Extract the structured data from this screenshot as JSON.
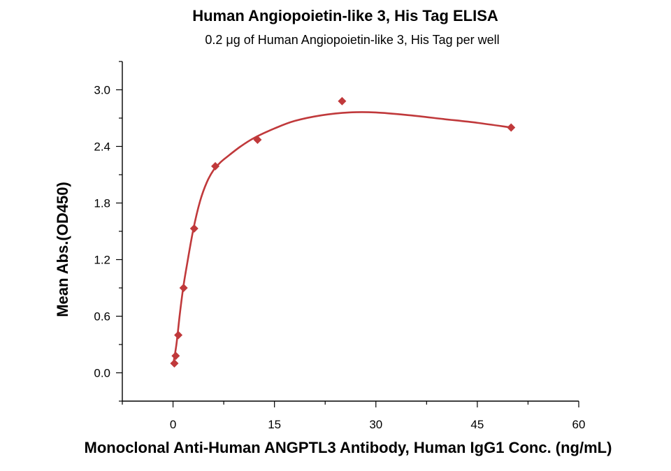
{
  "chart_data": {
    "type": "scatter",
    "title": "Human Angiopoietin-like 3, His Tag ELISA",
    "subtitle": "0.2 μg of Human Angiopoietin-like 3, His Tag per well",
    "xlabel": "Monoclonal Anti-Human ANGPTL3 Antibody, Human IgG1 Conc. (ng/mL)",
    "ylabel": "Mean Abs.(OD450)",
    "xlim": [
      -7.5,
      60
    ],
    "ylim": [
      -0.3,
      3.3
    ],
    "x_ticks": [
      0,
      15,
      30,
      45,
      60
    ],
    "x_tick_labels": [
      "0",
      "15",
      "30",
      "45",
      "60"
    ],
    "y_ticks": [
      0.0,
      0.6,
      1.2,
      1.8,
      2.4,
      3.0
    ],
    "y_tick_labels": [
      "0.0",
      "0.6",
      "1.2",
      "1.8",
      "2.4",
      "3.0"
    ],
    "grid": false,
    "color": "#c0393b",
    "series": [
      {
        "x": [
          0.195,
          0.39,
          0.78,
          1.56,
          3.125,
          6.25,
          12.5,
          25,
          50
        ],
        "y": [
          0.1,
          0.18,
          0.4,
          0.9,
          1.53,
          2.19,
          2.47,
          2.88,
          2.6
        ]
      }
    ],
    "fit_curve": {
      "x": [
        0,
        0.5,
        1,
        1.5,
        2,
        3,
        4,
        5,
        6,
        7,
        8,
        10,
        12,
        15,
        18,
        22,
        26,
        30,
        35,
        40,
        45,
        50
      ],
      "y": [
        0.08,
        0.3,
        0.62,
        0.9,
        1.12,
        1.52,
        1.82,
        2.02,
        2.15,
        2.23,
        2.29,
        2.4,
        2.49,
        2.59,
        2.67,
        2.73,
        2.76,
        2.76,
        2.73,
        2.69,
        2.65,
        2.6
      ]
    }
  }
}
